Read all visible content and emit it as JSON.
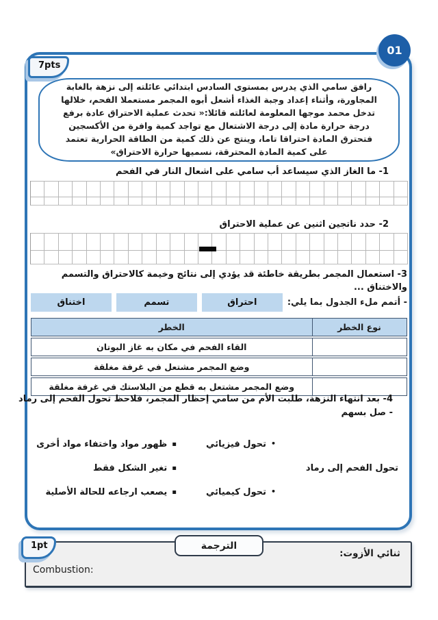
{
  "colors": {
    "frame_blue": "#2e75b6",
    "circle_blue": "#1d5fa8",
    "light_blue_accent": "#a9c7e6",
    "cell_blue": "#bdd7ee",
    "table_border": "#3f5570",
    "dark_border": "#2f3b4a",
    "box_gray": "#f0f0f0"
  },
  "header": {
    "exercise_number": "01",
    "points_badge": "7pts"
  },
  "passage": "رافق سامي الذي يدرس بمستوى السادس ابتدائي عائلته إلى نزهة بالغابة المجاورة، وأثناء إعداد وجبة الغذاء أشعل أبوه المجمر مستعملا الفحم، خلالها تدخل محمد موجها المعلومة لعائلته قائلا:« تحدث عملية الاحتراق عادة برفع درجة حرارة مادة إلى درجة الاشتعال مع تواجد كمية وافرة من الأكسجين فتحترق المادة احتراقا تاما، وينتج عن ذلك كمية من الطاقة الحرارية تعتمد على كمية المادة المحترقة، نسميها حرارة الاحتراق»",
  "q1": {
    "label": "1- ما الغاز الذي سيساعد أب سامي على اشعال النار في الفحم"
  },
  "q2": {
    "label": "2- حدد ناتجين اثنين عن عملية الاحتراق"
  },
  "q3": {
    "statement_line1": "3- استعمال المجمر بطريقة خاطئة قد يؤدي إلى نتائج وخيمة كالاحتراق والتسمم",
    "statement_line2": "والاختناق ...",
    "fill_label": "- أتمم ملء الجدول بما يلي:",
    "words": [
      "احتراق",
      "تسمم",
      "اختناق"
    ]
  },
  "table": {
    "header_danger": "الخطر",
    "header_type": "نوع الخطر",
    "rows": [
      "القاء الفحم في مكان به غاز البوتان",
      "وضع المجمر مشتعل في غرفة مغلقة",
      "وضع المجمر مشتعل به قطع من البلاستك في غرفة مغلقة"
    ]
  },
  "q4": {
    "statement": "4- بعد انتهاء النزهة، طلبت الأم من سامي إحظار المجمر، فلاحظ تحول الفحم إلى رماد",
    "instruction": "- صل بسهم",
    "matching": {
      "situation": "تحول الفحم إلى رماد",
      "types": [
        "تحول فيزيائي",
        "تحول كيميائي"
      ],
      "descriptions": [
        "ظهور مواد واختفاء مواد أخرى",
        "تغير الشكل فقط",
        "يصعب ارجاعه للحالة الأصلية"
      ]
    }
  },
  "translation": {
    "points_badge": "1pt",
    "tab_label": "الترجمة",
    "term_right": "ثنائي الأزوت:",
    "term_left": "Combustion:"
  },
  "icons": {
    "dot_bullet": "•",
    "square_bullet": "▪"
  }
}
